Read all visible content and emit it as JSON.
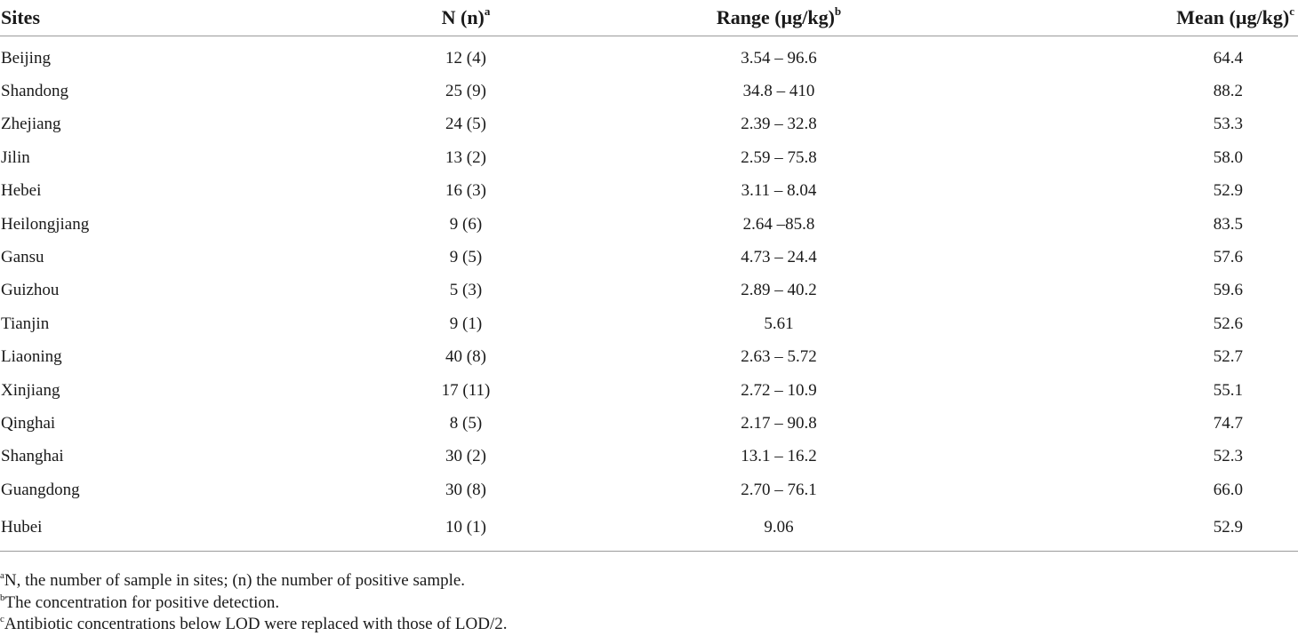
{
  "table": {
    "headers": {
      "site": "Sites",
      "n": "N (n)",
      "n_sup": "a",
      "range": "Range (µg/kg)",
      "range_sup": "b",
      "mean": "Mean (µg/kg)",
      "mean_sup": "c"
    },
    "rows": [
      {
        "site": "Beijing",
        "n": "12 (4)",
        "range": "3.54 – 96.6",
        "mean": "64.4"
      },
      {
        "site": "Shandong",
        "n": "25 (9)",
        "range": "34.8 – 410",
        "mean": "88.2"
      },
      {
        "site": "Zhejiang",
        "n": "24 (5)",
        "range": "2.39 – 32.8",
        "mean": "53.3"
      },
      {
        "site": "Jilin",
        "n": "13 (2)",
        "range": "2.59 – 75.8",
        "mean": "58.0"
      },
      {
        "site": "Hebei",
        "n": "16 (3)",
        "range": "3.11 – 8.04",
        "mean": "52.9"
      },
      {
        "site": "Heilongjiang",
        "n": "9 (6)",
        "range": "2.64 –85.8",
        "mean": "83.5"
      },
      {
        "site": "Gansu",
        "n": "9 (5)",
        "range": "4.73 – 24.4",
        "mean": "57.6"
      },
      {
        "site": "Guizhou",
        "n": "5 (3)",
        "range": "2.89 – 40.2",
        "mean": "59.6"
      },
      {
        "site": "Tianjin",
        "n": "9 (1)",
        "range": "5.61",
        "mean": "52.6"
      },
      {
        "site": "Liaoning",
        "n": "40 (8)",
        "range": "2.63 – 5.72",
        "mean": "52.7"
      },
      {
        "site": "Xinjiang",
        "n": "17 (11)",
        "range": "2.72 – 10.9",
        "mean": "55.1"
      },
      {
        "site": "Qinghai",
        "n": "8 (5)",
        "range": "2.17 – 90.8",
        "mean": "74.7"
      },
      {
        "site": "Shanghai",
        "n": "30 (2)",
        "range": "13.1 – 16.2",
        "mean": "52.3"
      },
      {
        "site": "Guangdong",
        "n": "30 (8)",
        "range": "2.70 – 76.1",
        "mean": "66.0"
      },
      {
        "site": "Hubei",
        "n": "10 (1)",
        "range": "9.06",
        "mean": "52.9"
      }
    ]
  },
  "footnotes": [
    {
      "mark": "a",
      "text": "N, the number of sample in sites; (n) the number of positive sample."
    },
    {
      "mark": "b",
      "text": "The concentration for positive detection."
    },
    {
      "mark": "c",
      "text": "Antibiotic concentrations below LOD were replaced with those of LOD/2."
    }
  ]
}
